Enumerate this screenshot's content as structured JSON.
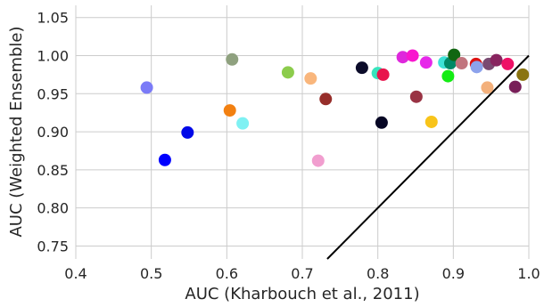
{
  "chart_data": {
    "type": "scatter",
    "xlabel": "AUC (Kharbouch et al., 2011)",
    "ylabel": "AUC (Weighted Ensemble)",
    "xlim": [
      0.4,
      1.0
    ],
    "ylim": [
      0.733,
      1.066
    ],
    "x_ticks": [
      "0.4",
      "0.5",
      "0.6",
      "0.7",
      "0.8",
      "0.9",
      "1.0"
    ],
    "y_ticks": [
      "0.75",
      "0.80",
      "0.85",
      "0.90",
      "0.95",
      "1.00",
      "1.05"
    ],
    "grid": true,
    "reference_line": {
      "from": [
        0.733,
        0.733
      ],
      "to": [
        1.0,
        1.0
      ],
      "color": "#000000"
    },
    "points": [
      {
        "x": 0.494,
        "y": 0.958,
        "color": "#7b7bf7"
      },
      {
        "x": 0.518,
        "y": 0.863,
        "color": "#0000ff"
      },
      {
        "x": 0.548,
        "y": 0.899,
        "color": "#0008e8"
      },
      {
        "x": 0.604,
        "y": 0.928,
        "color": "#f28011"
      },
      {
        "x": 0.607,
        "y": 0.995,
        "color": "#8fa17f"
      },
      {
        "x": 0.621,
        "y": 0.911,
        "color": "#7ff1f3"
      },
      {
        "x": 0.681,
        "y": 0.978,
        "color": "#8ccc4c"
      },
      {
        "x": 0.711,
        "y": 0.97,
        "color": "#f9b67c"
      },
      {
        "x": 0.721,
        "y": 0.862,
        "color": "#f19ecf"
      },
      {
        "x": 0.731,
        "y": 0.943,
        "color": "#962e2a"
      },
      {
        "x": 0.779,
        "y": 0.984,
        "color": "#0c0c2a"
      },
      {
        "x": 0.8,
        "y": 0.977,
        "color": "#37e5be"
      },
      {
        "x": 0.805,
        "y": 0.912,
        "color": "#060624"
      },
      {
        "x": 0.807,
        "y": 0.975,
        "color": "#e8154c"
      },
      {
        "x": 0.833,
        "y": 0.998,
        "color": "#de28dc"
      },
      {
        "x": 0.846,
        "y": 1.0,
        "color": "#f817ce"
      },
      {
        "x": 0.851,
        "y": 0.946,
        "color": "#993344"
      },
      {
        "x": 0.864,
        "y": 0.991,
        "color": "#e628e9"
      },
      {
        "x": 0.871,
        "y": 0.913,
        "color": "#f8c41a"
      },
      {
        "x": 0.888,
        "y": 0.991,
        "color": "#3de2d7"
      },
      {
        "x": 0.893,
        "y": 0.973,
        "color": "#13ec13"
      },
      {
        "x": 0.896,
        "y": 0.99,
        "color": "#008866"
      },
      {
        "x": 0.901,
        "y": 1.001,
        "color": "#116611"
      },
      {
        "x": 0.911,
        "y": 0.99,
        "color": "#c1747d"
      },
      {
        "x": 0.93,
        "y": 0.989,
        "color": "#dd1111"
      },
      {
        "x": 0.931,
        "y": 0.985,
        "color": "#8ca2ec"
      },
      {
        "x": 0.945,
        "y": 0.958,
        "color": "#f3b07b"
      },
      {
        "x": 0.947,
        "y": 0.989,
        "color": "#7a4a72"
      },
      {
        "x": 0.957,
        "y": 0.994,
        "color": "#88245f"
      },
      {
        "x": 0.972,
        "y": 0.989,
        "color": "#ee1166"
      },
      {
        "x": 0.982,
        "y": 0.959,
        "color": "#781e58"
      },
      {
        "x": 0.992,
        "y": 0.975,
        "color": "#8a7410"
      }
    ]
  }
}
